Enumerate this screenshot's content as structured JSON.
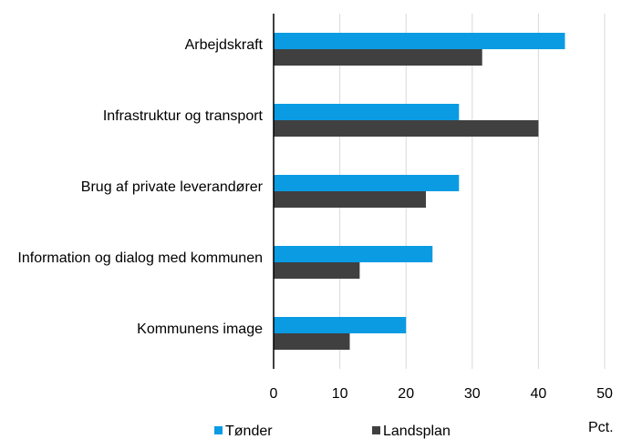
{
  "chart_data": {
    "type": "hbar",
    "categories": [
      "Arbejdskraft",
      "Infrastruktur og transport",
      "Brug af private leverandører",
      "Information og dialog med kommunen",
      "Kommunens image"
    ],
    "series": [
      {
        "name": "Tønder",
        "color": "#0a9be3",
        "values": [
          44,
          28,
          28,
          24,
          20
        ]
      },
      {
        "name": "Landsplan",
        "color": "#404040",
        "values": [
          31.5,
          40,
          23,
          13,
          11.5
        ]
      }
    ],
    "xlim": [
      0,
      50
    ],
    "xticks": [
      0,
      10,
      20,
      30,
      40,
      50
    ],
    "x_label": "Pct.",
    "grid": true
  }
}
